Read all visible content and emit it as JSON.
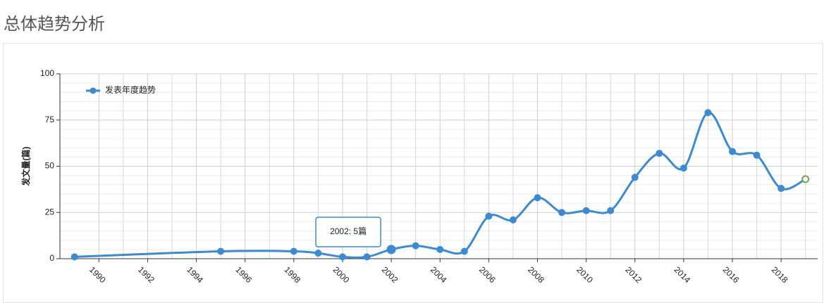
{
  "header": {
    "title": "总体趋势分析"
  },
  "chart_data": {
    "type": "line",
    "y_label": "发文量(篇)",
    "x": [
      1989,
      1995,
      1998,
      1999,
      2000,
      2001,
      2002,
      2003,
      2004,
      2005,
      2006,
      2007,
      2008,
      2009,
      2010,
      2011,
      2012,
      2013,
      2014,
      2015,
      2016,
      2017,
      2018,
      2019
    ],
    "series": [
      {
        "name": "发表年度趋势",
        "color": "#3a8ad6",
        "values": [
          1,
          4,
          4,
          3,
          1,
          1,
          5,
          7,
          5,
          4,
          23,
          21,
          33,
          25,
          26,
          26,
          44,
          57,
          49,
          79,
          58,
          56,
          38,
          43
        ]
      }
    ],
    "last_point_color": "#6aa84f",
    "tooltip": {
      "x": 2002,
      "text": "2002: 5篇"
    },
    "xlim": [
      1988.4,
      2019.5
    ],
    "xticks": [
      1990,
      1992,
      1994,
      1996,
      1998,
      2000,
      2002,
      2004,
      2006,
      2008,
      2010,
      2012,
      2014,
      2016,
      2018
    ],
    "ylim": [
      0,
      100
    ],
    "yticks": [
      0,
      25,
      50,
      75,
      100
    ],
    "grid": true,
    "legend": "top-left"
  }
}
